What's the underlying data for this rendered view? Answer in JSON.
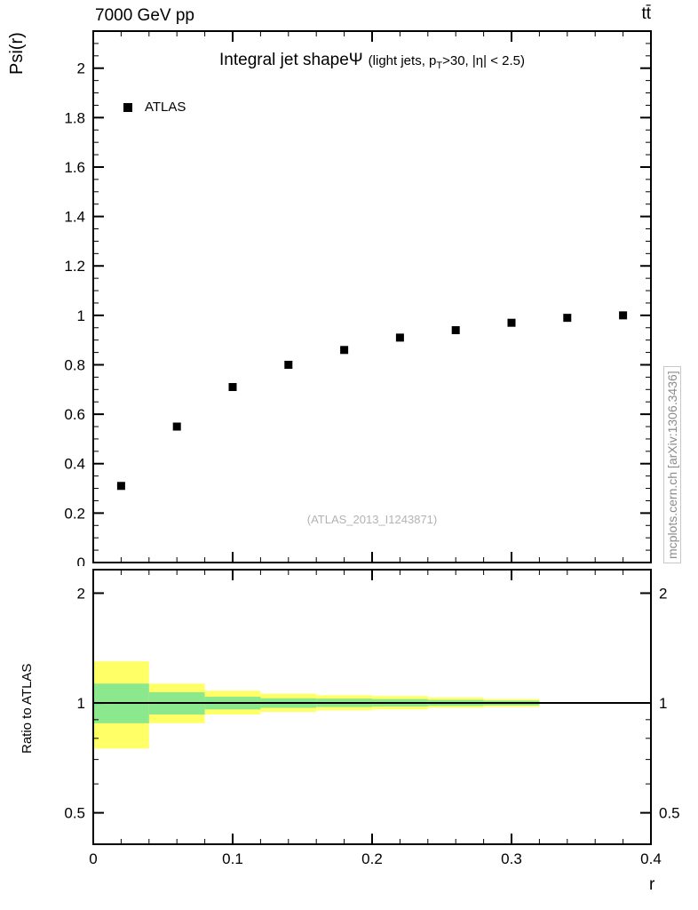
{
  "page": {
    "background": "#ffffff"
  },
  "header": {
    "left": "7000 GeV pp",
    "right": "tt̄"
  },
  "title": {
    "part1": "Integral jet shapeΨ",
    "part2": "(light jets, p",
    "part3": "T",
    "part4": ">30, |η| < 2.5)"
  },
  "legend": {
    "atlas": "ATLAS"
  },
  "watermark": "(ATLAS_2013_I1243871)",
  "credit": "mcplots.cern.ch [arXiv:1306.3436]",
  "axes": {
    "top_y_title": "Psi(r)",
    "ratio_y_title": "Ratio to ATLAS",
    "x_title": "r"
  },
  "colors": {
    "band_outer": "#ffff66",
    "band_inner": "#8ce88c",
    "marker": "#000000",
    "reference_line": "#000000",
    "watermark": "#b3b3b3",
    "credit": "#8c8c8c"
  },
  "chart_data": [
    {
      "type": "scatter",
      "title": "Integral jet shapeΨ (light jets, p_T>30, |η| < 2.5)",
      "xlabel": "r",
      "ylabel": "Psi(r)",
      "xlim": [
        0,
        0.4
      ],
      "ylim": [
        0,
        2.15
      ],
      "grid": false,
      "legend_position": "top-left",
      "xticks": {
        "values": [
          0,
          0.1,
          0.2,
          0.3,
          0.4
        ],
        "labels": [
          "0",
          "0.1",
          "0.2",
          "0.3",
          "0.4"
        ],
        "minor_step": 0.02
      },
      "yticks": {
        "values": [
          0,
          0.2,
          0.4,
          0.6,
          0.8,
          1,
          1.2,
          1.4,
          1.6,
          1.8,
          2
        ],
        "labels": [
          "0",
          "0.2",
          "0.4",
          "0.6",
          "0.8",
          "1",
          "1.2",
          "1.4",
          "1.6",
          "1.8",
          "2"
        ],
        "minor_step": 0.05
      },
      "series": [
        {
          "name": "ATLAS",
          "marker": "filled-square",
          "color": "#000000",
          "x": [
            0.02,
            0.06,
            0.1,
            0.14,
            0.18,
            0.22,
            0.26,
            0.3,
            0.34,
            0.38
          ],
          "y": [
            0.31,
            0.55,
            0.71,
            0.8,
            0.86,
            0.91,
            0.94,
            0.97,
            0.99,
            1.0
          ]
        }
      ],
      "annotations": [
        "(ATLAS_2013_I1243871)"
      ]
    },
    {
      "type": "area",
      "title": "",
      "xlabel": "r",
      "ylabel": "Ratio to ATLAS",
      "xlim": [
        0,
        0.4
      ],
      "ylim": [
        0.41,
        2.32
      ],
      "yscale": "log",
      "reference_line_y": 1,
      "xticks": {
        "values": [
          0,
          0.1,
          0.2,
          0.3,
          0.4
        ],
        "labels": [
          "0",
          "0.1",
          "0.2",
          "0.3",
          "0.4"
        ],
        "minor_step": 0.02
      },
      "yticks": {
        "values": [
          0.5,
          1,
          2
        ],
        "labels": [
          "0.5",
          "1",
          "2"
        ],
        "minor_values": [
          0.6,
          0.7,
          0.8,
          0.9
        ]
      },
      "bands": [
        {
          "name": "outer-uncertainty",
          "color": "#ffff66",
          "bins": [
            [
              0.0,
              0.04,
              0.75,
              1.3
            ],
            [
              0.04,
              0.08,
              0.88,
              1.13
            ],
            [
              0.08,
              0.12,
              0.93,
              1.08
            ],
            [
              0.12,
              0.16,
              0.945,
              1.06
            ],
            [
              0.16,
              0.2,
              0.955,
              1.05
            ],
            [
              0.2,
              0.24,
              0.96,
              1.045
            ],
            [
              0.24,
              0.28,
              0.97,
              1.035
            ],
            [
              0.28,
              0.32,
              0.975,
              1.025
            ]
          ]
        },
        {
          "name": "inner-uncertainty",
          "color": "#8ce88c",
          "bins": [
            [
              0.0,
              0.04,
              0.88,
              1.13
            ],
            [
              0.04,
              0.08,
              0.93,
              1.07
            ],
            [
              0.08,
              0.12,
              0.96,
              1.04
            ],
            [
              0.12,
              0.16,
              0.97,
              1.03
            ],
            [
              0.16,
              0.2,
              0.975,
              1.028
            ],
            [
              0.2,
              0.24,
              0.978,
              1.025
            ],
            [
              0.24,
              0.28,
              0.982,
              1.02
            ],
            [
              0.28,
              0.32,
              0.985,
              1.015
            ]
          ]
        }
      ]
    }
  ]
}
